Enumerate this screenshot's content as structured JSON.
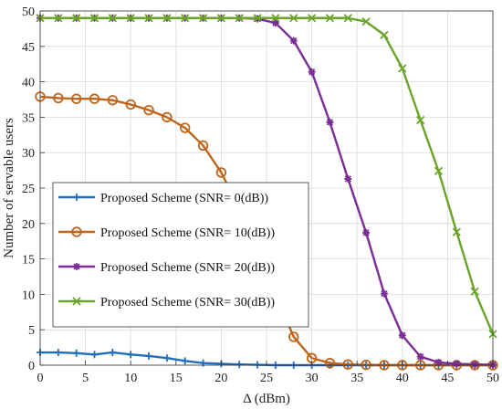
{
  "chart_data": {
    "type": "line",
    "title": "",
    "xlabel": "Δ (dBm)",
    "ylabel": "Number of servable users",
    "xlim": [
      0,
      50
    ],
    "ylim": [
      0,
      50
    ],
    "xticks": [
      0,
      5,
      10,
      15,
      20,
      25,
      30,
      35,
      40,
      45,
      50
    ],
    "yticks": [
      0,
      5,
      10,
      15,
      20,
      25,
      30,
      35,
      40,
      45,
      50
    ],
    "grid": true,
    "legend_position": "lower-left",
    "x": [
      0,
      2,
      4,
      6,
      8,
      10,
      12,
      14,
      16,
      18,
      20,
      22,
      24,
      26,
      28,
      30,
      32,
      34,
      36,
      38,
      40,
      42,
      44,
      46,
      48,
      50
    ],
    "series": [
      {
        "name": "Proposed Scheme (SNR= 0(dB))",
        "color": "#1f6fc0",
        "marker": "plus",
        "values": [
          1.8,
          1.8,
          1.7,
          1.5,
          1.8,
          1.5,
          1.3,
          1.0,
          0.6,
          0.3,
          0.2,
          0.1,
          0.05,
          0,
          0,
          0,
          0,
          0,
          0,
          0,
          0,
          0,
          0,
          0,
          0,
          0
        ]
      },
      {
        "name": "Proposed Scheme (SNR= 10(dB))",
        "color": "#c0651a",
        "marker": "circle",
        "values": [
          37.9,
          37.7,
          37.6,
          37.6,
          37.4,
          36.8,
          36.0,
          35.0,
          33.5,
          31.0,
          27.2,
          22.0,
          16.0,
          10.0,
          4.0,
          1.0,
          0.3,
          0.1,
          0.05,
          0,
          0,
          0,
          0,
          0,
          0,
          0
        ]
      },
      {
        "name": "Proposed Scheme (SNR= 20(dB))",
        "color": "#7b2d96",
        "marker": "asterisk",
        "values": [
          49,
          49,
          49,
          49,
          49,
          49,
          49,
          49,
          49,
          49,
          49,
          49,
          48.9,
          48.3,
          45.8,
          41.4,
          34.3,
          26.3,
          18.7,
          10.1,
          4.2,
          1.2,
          0.4,
          0.2,
          0.1,
          0.05
        ]
      },
      {
        "name": "Proposed Scheme (SNR= 30(dB))",
        "color": "#6aa52a",
        "marker": "x",
        "values": [
          49,
          49,
          49,
          49,
          49,
          49,
          49,
          49,
          49,
          49,
          49,
          49,
          49,
          49,
          49,
          49,
          49,
          49,
          48.5,
          46.6,
          41.9,
          34.6,
          27.4,
          18.8,
          10.4,
          4.4
        ]
      }
    ]
  }
}
